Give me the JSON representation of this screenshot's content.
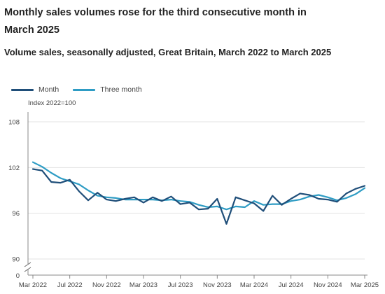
{
  "chart_data": {
    "type": "line",
    "title": "Monthly sales volumes rose for the third consecutive month in March 2025",
    "subtitle": "Volume sales, seasonally adjusted, Great Britain, March 2022 to March 2025",
    "ylabel": "Index 2022=100",
    "ylim": [
      90,
      110
    ],
    "y_zero_tick": "0",
    "y_ticks": [
      108,
      102,
      96,
      90
    ],
    "x": [
      "Mar 2022",
      "Apr 2022",
      "May 2022",
      "Jun 2022",
      "Jul 2022",
      "Aug 2022",
      "Sep 2022",
      "Oct 2022",
      "Nov 2022",
      "Dec 2022",
      "Jan 2023",
      "Feb 2023",
      "Mar 2023",
      "Apr 2023",
      "May 2023",
      "Jun 2023",
      "Jul 2023",
      "Aug 2023",
      "Sep 2023",
      "Oct 2023",
      "Nov 2023",
      "Dec 2023",
      "Jan 2024",
      "Feb 2024",
      "Mar 2024",
      "Apr 2024",
      "May 2024",
      "Jun 2024",
      "Jul 2024",
      "Aug 2024",
      "Sep 2024",
      "Oct 2024",
      "Nov 2024",
      "Dec 2024",
      "Jan 2025",
      "Feb 2025",
      "Mar 2025"
    ],
    "x_tick_labels": [
      "Mar 2022",
      "Jul 2022",
      "Nov 2022",
      "Mar 2023",
      "Jul 2023",
      "Nov 2023",
      "Mar 2024",
      "Jul 2024",
      "Nov 2024",
      "Mar 2025"
    ],
    "legend_position": "top-left",
    "grid": true,
    "series": [
      {
        "name": "Month",
        "color": "#1f4e79",
        "values": [
          101.8,
          101.6,
          100.1,
          100.0,
          100.4,
          98.9,
          97.7,
          98.7,
          97.8,
          97.6,
          97.9,
          98.1,
          97.4,
          98.1,
          97.6,
          98.2,
          97.2,
          97.4,
          96.5,
          96.6,
          97.9,
          94.6,
          98.1,
          97.7,
          97.3,
          96.3,
          98.3,
          97.1,
          97.9,
          98.6,
          98.4,
          97.9,
          97.8,
          97.5,
          98.6,
          99.2,
          99.6
        ]
      },
      {
        "name": "Three month",
        "color": "#2e9cc4",
        "values": [
          102.7,
          102.1,
          101.3,
          100.6,
          100.2,
          99.8,
          99.0,
          98.3,
          98.1,
          98.0,
          97.8,
          97.8,
          97.8,
          97.8,
          97.7,
          97.8,
          97.6,
          97.5,
          97.1,
          96.8,
          96.9,
          96.5,
          96.9,
          96.8,
          97.6,
          97.1,
          97.2,
          97.2,
          97.6,
          97.8,
          98.2,
          98.4,
          98.1,
          97.7,
          98.0,
          98.5,
          99.3
        ]
      }
    ]
  }
}
